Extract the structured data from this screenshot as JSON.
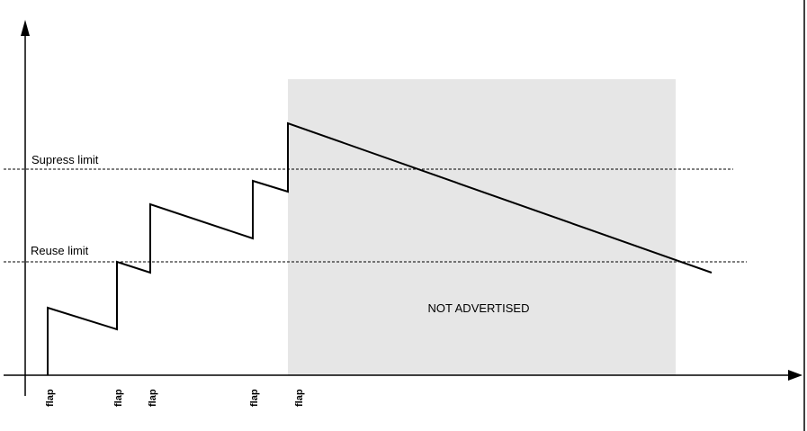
{
  "diagram": {
    "thresholds": [
      {
        "id": "supress",
        "label": "Supress limit",
        "value": 0.65
      },
      {
        "id": "reuse",
        "label": "Reuse limit",
        "value": 0.4
      }
    ],
    "region_label": "NOT ADVERTISED",
    "flap_label": "flap",
    "colors": {
      "region_fill": "#e6e6e6",
      "line": "#000000"
    }
  }
}
